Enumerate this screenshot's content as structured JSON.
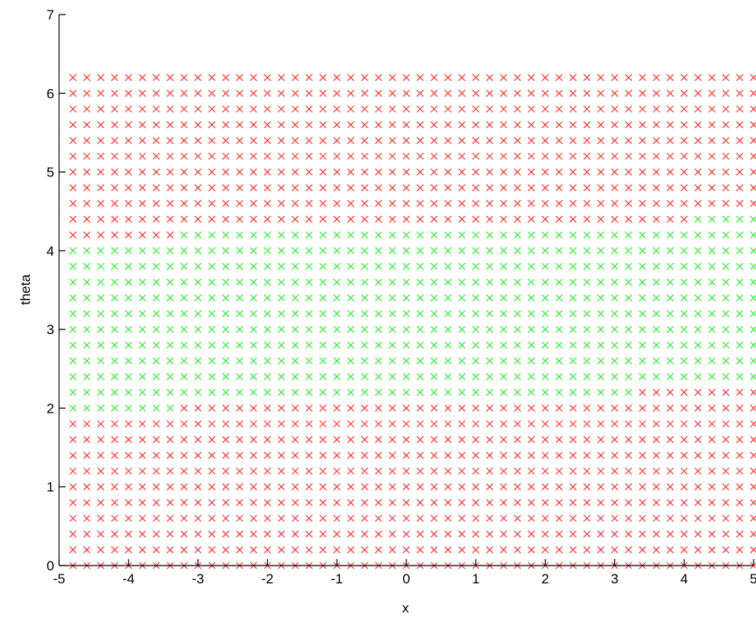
{
  "chart_data": {
    "type": "scatter",
    "title": "",
    "xlabel": "x",
    "ylabel": "theta",
    "xlim": [
      -5,
      5
    ],
    "ylim": [
      0,
      7
    ],
    "x_ticks": [
      -5,
      -4,
      -3,
      -2,
      -1,
      0,
      1,
      2,
      3,
      4,
      5
    ],
    "y_ticks": [
      0,
      1,
      2,
      3,
      4,
      5,
      6,
      7
    ],
    "grid": false,
    "legend": "none",
    "marker": "x",
    "grid_x": {
      "start": -4.8,
      "step": 0.2,
      "count": 50
    },
    "grid_y": {
      "start": 0,
      "step": 0.2,
      "count": 32
    },
    "green_region": [
      {
        "x_from": -4.8,
        "x_to": -3.4,
        "y_from": 2.0,
        "y_to": 4.0
      },
      {
        "x_from": -3.2,
        "x_to": 3.2,
        "y_from": 2.2,
        "y_to": 4.2
      },
      {
        "x_from": 3.4,
        "x_to": 4.0,
        "y_from": 2.4,
        "y_to": 4.2
      },
      {
        "x_from": 4.2,
        "x_to": 5.0,
        "y_from": 2.4,
        "y_to": 4.4
      }
    ],
    "series": [
      {
        "color": "#ff3333"
      },
      {
        "color": "#33ee33"
      }
    ]
  }
}
